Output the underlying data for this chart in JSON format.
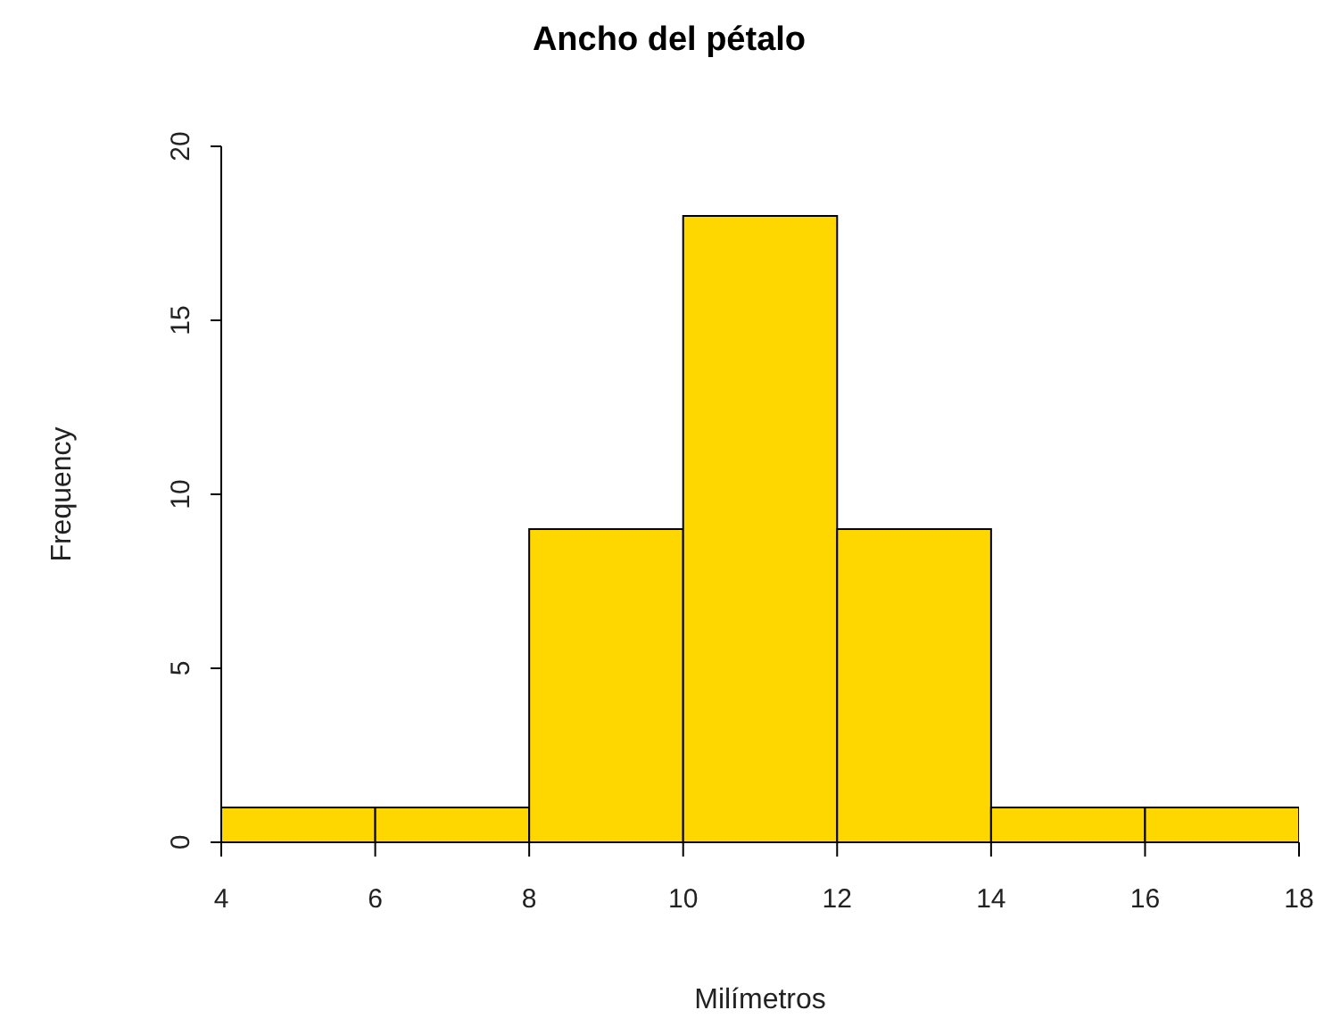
{
  "chart_data": {
    "type": "histogram",
    "title": "Ancho del pétalo",
    "xlabel": "Milímetros",
    "ylabel": "Frequency",
    "bins": [
      4,
      6,
      8,
      10,
      12,
      14,
      16,
      18
    ],
    "values": [
      1,
      1,
      9,
      18,
      9,
      1,
      1
    ],
    "color": "#ffd700",
    "xlim": [
      4,
      18
    ],
    "xticks": [
      4,
      6,
      8,
      10,
      12,
      14,
      16,
      18
    ],
    "ylim": [
      0,
      20
    ],
    "yticks": [
      0,
      5,
      10,
      15,
      20
    ],
    "grid": false,
    "legend": false
  }
}
